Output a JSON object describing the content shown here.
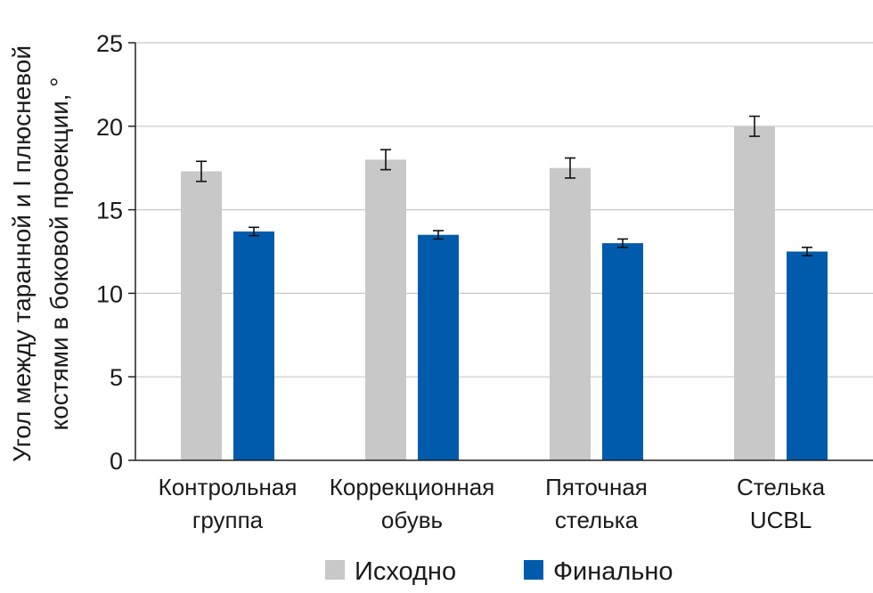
{
  "chart_data": {
    "type": "bar",
    "title": "",
    "ylabel_lines": [
      "Угол между таранной и I плюсневой",
      "костями в боковой проекции, °"
    ],
    "xlabel": "",
    "categories": [
      [
        "Контрольная",
        "группа"
      ],
      [
        "Коррекционная",
        "обувь"
      ],
      [
        "Пяточная",
        "стелька"
      ],
      [
        "Стелька",
        "UCBL"
      ]
    ],
    "series": [
      {
        "name": "Исходно",
        "color": "#c8c8c8",
        "values": [
          17.3,
          18.0,
          17.5,
          20.0
        ],
        "errors": [
          0.6,
          0.6,
          0.6,
          0.6
        ]
      },
      {
        "name": "Финально",
        "color": "#005bac",
        "values": [
          13.7,
          13.5,
          13.0,
          12.5
        ],
        "errors": [
          0.25,
          0.25,
          0.25,
          0.25
        ]
      }
    ],
    "ylim": [
      0,
      25
    ],
    "yticks": [
      0,
      5,
      10,
      15,
      20,
      25
    ],
    "grid": true,
    "legend_position": "bottom"
  }
}
